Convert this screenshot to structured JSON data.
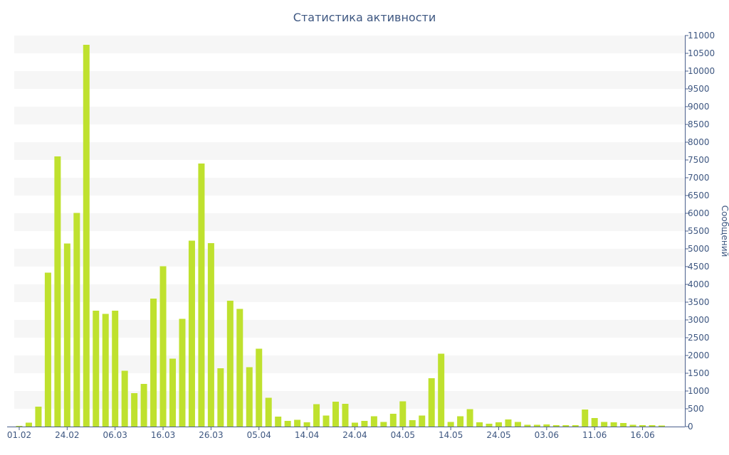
{
  "chart_data": {
    "type": "bar",
    "title": "Статистика активности",
    "ylabel": "Сообщений",
    "ylim": [
      0,
      11000
    ],
    "y_ticks": [
      0,
      500,
      1000,
      1500,
      2000,
      2500,
      3000,
      3500,
      4000,
      4500,
      5000,
      5500,
      6000,
      6500,
      7000,
      7500,
      8000,
      8500,
      9000,
      9500,
      10000,
      10500,
      11000
    ],
    "x_tick_labels": [
      {
        "label": "01.02",
        "index": 0
      },
      {
        "label": "24.02",
        "index": 5
      },
      {
        "label": "06.03",
        "index": 10
      },
      {
        "label": "16.03",
        "index": 15
      },
      {
        "label": "26.03",
        "index": 20
      },
      {
        "label": "05.04",
        "index": 25
      },
      {
        "label": "14.04",
        "index": 30
      },
      {
        "label": "24.04",
        "index": 35
      },
      {
        "label": "04.05",
        "index": 40
      },
      {
        "label": "14.05",
        "index": 45
      },
      {
        "label": "24.05",
        "index": 50
      },
      {
        "label": "03.06",
        "index": 55
      },
      {
        "label": "11.06",
        "index": 60
      },
      {
        "label": "16.06",
        "index": 65
      }
    ],
    "values": [
      20,
      110,
      560,
      4330,
      7600,
      5150,
      6010,
      10740,
      3260,
      3170,
      3260,
      1570,
      940,
      1200,
      3600,
      4510,
      1910,
      3030,
      5230,
      7400,
      5160,
      1640,
      3540,
      3310,
      1670,
      2190,
      810,
      280,
      160,
      190,
      120,
      630,
      310,
      700,
      640,
      110,
      160,
      290,
      130,
      360,
      710,
      180,
      310,
      1360,
      2050,
      130,
      290,
      490,
      120,
      80,
      120,
      200,
      130,
      50,
      50,
      60,
      40,
      40,
      40,
      480,
      240,
      130,
      120,
      100,
      50,
      40,
      40,
      30
    ],
    "grid": true,
    "legend": "none",
    "colors": {
      "bar": "#bfe12e",
      "text": "#3e5781",
      "band": "#f6f6f6",
      "axis": "#4a5f8c"
    }
  }
}
